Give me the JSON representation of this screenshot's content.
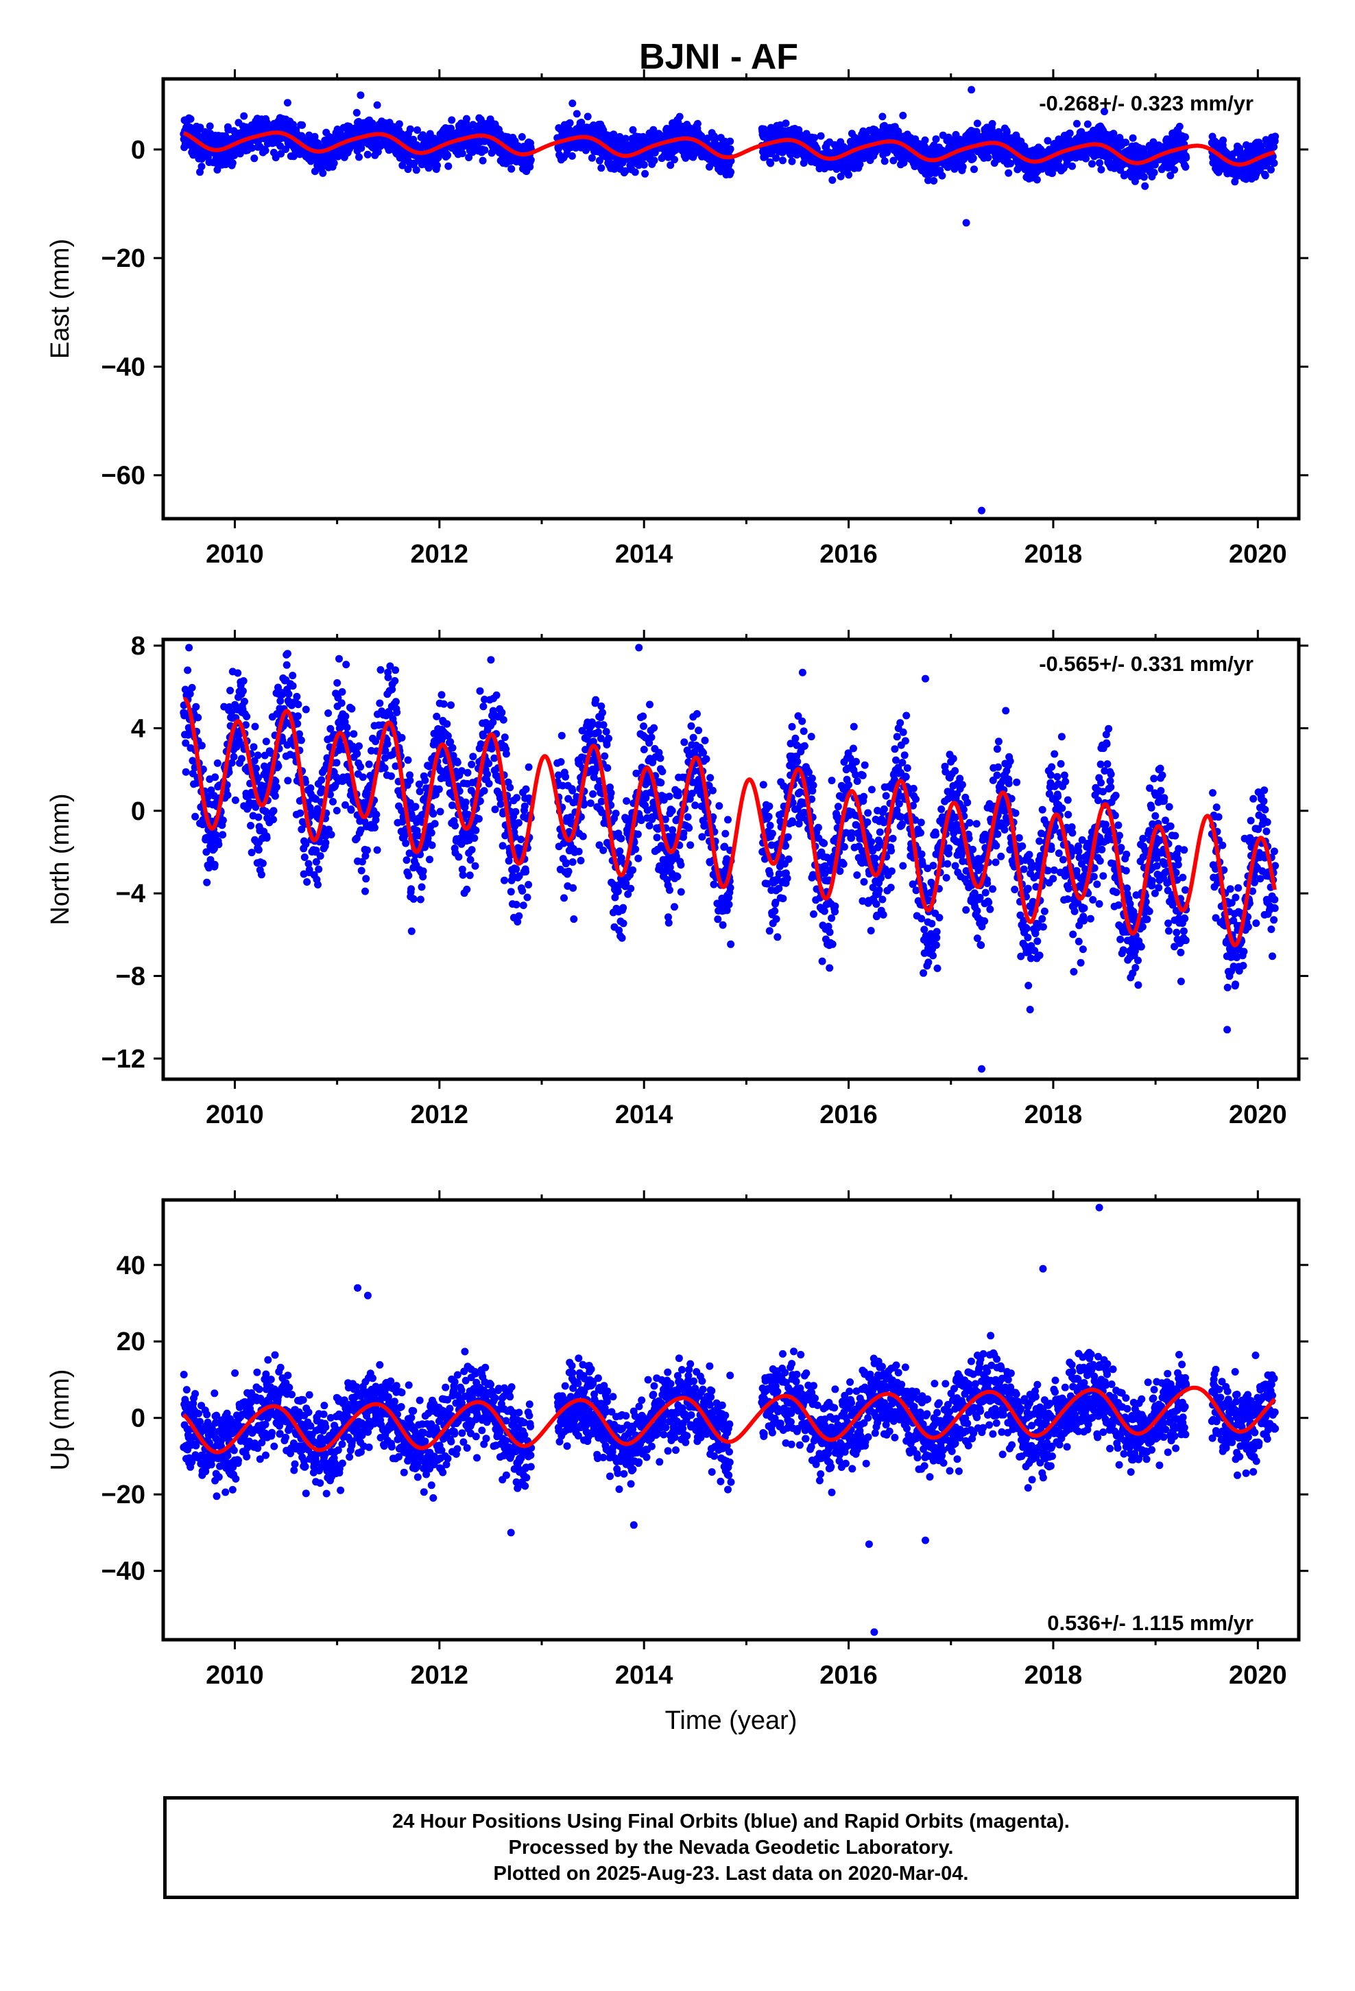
{
  "title": "BJNI - AF",
  "colors": {
    "final_orbits": "#0000ff",
    "model_fit": "#ff0000",
    "axes": "#000000"
  },
  "chart_data": [
    {
      "type": "scatter",
      "panel": "east",
      "title": "BJNI - AF",
      "ylabel": "East (mm)",
      "xlabel": "",
      "xlim": [
        2009.3,
        2020.4
      ],
      "ylim": [
        -68,
        13
      ],
      "xticks": [
        2010,
        2012,
        2014,
        2016,
        2018,
        2020
      ],
      "yticks": [
        -60,
        -40,
        -20,
        0
      ],
      "rate_text": "-0.268+/- 0.323 mm/yr",
      "rate_position": "top-right",
      "series": [
        {
          "kind": "points",
          "data_span": [
            2009.5,
            2020.17
          ],
          "offset": 1.8,
          "rate": -0.268,
          "annual_amp": 1.6,
          "semiannual_amp": 0.3,
          "scatter": 1.7,
          "gaps": [
            [
              2012.9,
              2013.15
            ],
            [
              2014.85,
              2015.15
            ],
            [
              2019.3,
              2019.55
            ]
          ],
          "outliers": [
            [
              2011.23,
              10
            ],
            [
              2017.2,
              11
            ],
            [
              2017.15,
              -13.5
            ],
            [
              2017.3,
              -66.5
            ],
            [
              2018.5,
              7
            ],
            [
              2013.3,
              8.5
            ]
          ]
        },
        {
          "kind": "fit",
          "span": [
            2009.5,
            2020.17
          ],
          "offset": 1.8,
          "rate": -0.268,
          "annual_amp": 1.6,
          "semiannual_amp": 0.3
        }
      ]
    },
    {
      "type": "scatter",
      "panel": "north",
      "ylabel": "North (mm)",
      "xlabel": "",
      "xlim": [
        2009.3,
        2020.4
      ],
      "ylim": [
        -13,
        8.3
      ],
      "xticks": [
        2010,
        2012,
        2014,
        2016,
        2018,
        2020
      ],
      "yticks": [
        -12,
        -8,
        -4,
        0,
        4,
        8
      ],
      "rate_text": "-0.565+/- 0.331 mm/yr",
      "rate_position": "top-right",
      "series": [
        {
          "kind": "points",
          "data_span": [
            2009.5,
            2020.17
          ],
          "offset": 2.5,
          "rate": -0.565,
          "annual_amp": 0.8,
          "semiannual_amp": 2.5,
          "scatter": 1.6,
          "gaps": [
            [
              2012.9,
              2013.15
            ],
            [
              2014.85,
              2015.15
            ],
            [
              2019.3,
              2019.55
            ]
          ],
          "outliers": [
            [
              2013.95,
              7.9
            ],
            [
              2017.3,
              -12.5
            ],
            [
              2019.7,
              -10.6
            ],
            [
              2015.55,
              6.7
            ],
            [
              2016.75,
              6.4
            ]
          ]
        },
        {
          "kind": "fit",
          "span": [
            2009.5,
            2020.17
          ],
          "offset": 2.5,
          "rate": -0.565,
          "annual_amp": 0.8,
          "semiannual_amp": 2.5
        }
      ]
    },
    {
      "type": "scatter",
      "panel": "up",
      "ylabel": "Up (mm)",
      "xlabel": "Time (year)",
      "xlim": [
        2009.3,
        2020.4
      ],
      "ylim": [
        -58,
        57
      ],
      "xticks": [
        2010,
        2012,
        2014,
        2016,
        2018,
        2020
      ],
      "yticks": [
        -40,
        -20,
        0,
        20,
        40
      ],
      "rate_text": "0.536+/- 1.115 mm/yr",
      "rate_position": "bottom-right",
      "series": [
        {
          "kind": "points",
          "data_span": [
            2009.5,
            2020.17
          ],
          "offset": -3.0,
          "rate": 0.536,
          "annual_amp": 5.8,
          "semiannual_amp": 0.5,
          "scatter": 5.5,
          "gaps": [
            [
              2012.9,
              2013.15
            ],
            [
              2014.85,
              2015.15
            ],
            [
              2019.3,
              2019.55
            ]
          ],
          "outliers": [
            [
              2011.2,
              34
            ],
            [
              2011.3,
              32
            ],
            [
              2018.45,
              55
            ],
            [
              2016.25,
              -56
            ],
            [
              2017.9,
              39
            ],
            [
              2016.2,
              -33
            ],
            [
              2016.75,
              -32
            ],
            [
              2012.7,
              -30
            ],
            [
              2013.9,
              -28
            ]
          ]
        },
        {
          "kind": "fit",
          "span": [
            2009.5,
            2020.17
          ],
          "offset": -3.0,
          "rate": 0.536,
          "annual_amp": 5.8,
          "semiannual_amp": 0.5
        }
      ]
    }
  ],
  "footer": {
    "line1": "24 Hour Positions Using Final Orbits (blue) and Rapid Orbits (magenta).",
    "line2": "Processed by the Nevada Geodetic Laboratory.",
    "line3": "Plotted on 2025-Aug-23. Last data on 2020-Mar-04."
  }
}
